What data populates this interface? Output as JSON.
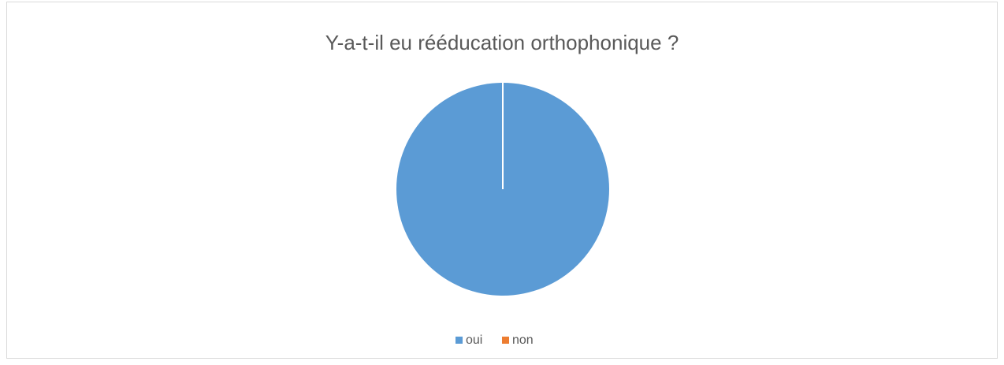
{
  "chart_data": {
    "type": "pie",
    "title": "Y-a-t-il eu rééducation orthophonique ?",
    "categories": [
      "oui",
      "non"
    ],
    "values": [
      100,
      0
    ],
    "colors": [
      "#5b9bd5",
      "#ed7d31"
    ],
    "legend": "bottom"
  }
}
